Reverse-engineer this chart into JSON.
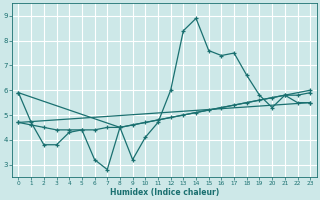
{
  "background_color": "#cde8e8",
  "grid_color": "#ffffff",
  "line_color": "#1a7070",
  "marker": "+",
  "xlabel": "Humidex (Indice chaleur)",
  "xlim": [
    -0.5,
    23.5
  ],
  "ylim": [
    2.5,
    9.5
  ],
  "yticks": [
    3,
    4,
    5,
    6,
    7,
    8,
    9
  ],
  "xticks": [
    0,
    1,
    2,
    3,
    4,
    5,
    6,
    7,
    8,
    9,
    10,
    11,
    12,
    13,
    14,
    15,
    16,
    17,
    18,
    19,
    20,
    21,
    22,
    23
  ],
  "series": [
    {
      "x": [
        0,
        1,
        2,
        3,
        4,
        5,
        6,
        7,
        8,
        9,
        10,
        11,
        12,
        13,
        14,
        15,
        16,
        17,
        18,
        19,
        20,
        21,
        22,
        23
      ],
      "y": [
        5.9,
        4.7,
        3.8,
        3.8,
        4.3,
        4.4,
        3.2,
        2.8,
        4.5,
        3.2,
        4.1,
        4.7,
        6.0,
        8.4,
        8.9,
        7.6,
        7.4,
        7.5,
        6.6,
        5.8,
        5.3,
        5.8,
        5.5,
        5.5
      ]
    },
    {
      "x": [
        0,
        1,
        2,
        3,
        4,
        5,
        6,
        7,
        8,
        9,
        10,
        11,
        12,
        13,
        14,
        15,
        16,
        17,
        18,
        19,
        20,
        21,
        22,
        23
      ],
      "y": [
        4.7,
        4.6,
        4.5,
        4.4,
        4.4,
        4.4,
        4.4,
        4.5,
        4.5,
        4.6,
        4.7,
        4.8,
        4.9,
        5.0,
        5.1,
        5.2,
        5.3,
        5.4,
        5.5,
        5.6,
        5.7,
        5.8,
        5.8,
        5.9
      ]
    },
    {
      "x": [
        0,
        23
      ],
      "y": [
        4.7,
        5.5
      ]
    },
    {
      "x": [
        0,
        8,
        23
      ],
      "y": [
        5.9,
        4.5,
        6.0
      ]
    }
  ]
}
